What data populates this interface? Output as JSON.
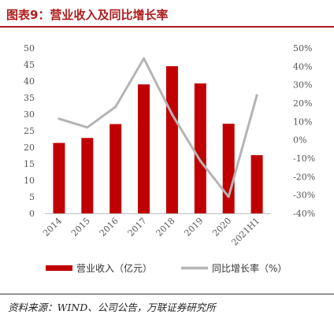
{
  "figure": {
    "title": "图表9：营业收入及同比增长率",
    "source": "资料来源：WIND、公司公告，万联证券研究所"
  },
  "chart_data": {
    "type": "bar",
    "title": "",
    "xlabel": "",
    "categories": [
      "2014",
      "2015",
      "2016",
      "2017",
      "2018",
      "2019",
      "2020",
      "2021H1"
    ],
    "left_axis": {
      "ylim": [
        0,
        50
      ],
      "ticks": [
        "0",
        "5",
        "10",
        "15",
        "20",
        "25",
        "30",
        "35",
        "40",
        "45",
        "50"
      ]
    },
    "right_axis": {
      "ylim": [
        -40,
        50
      ],
      "ticks": [
        "-40%",
        "-30%",
        "-20%",
        "-10%",
        "0%",
        "10%",
        "20%",
        "30%",
        "40%",
        "50%"
      ]
    },
    "series": [
      {
        "name": "营业收入（亿元）",
        "type": "bar",
        "axis": "left",
        "color": "#c00000",
        "values": [
          21.3,
          22.8,
          27.0,
          39.0,
          44.5,
          39.3,
          27.1,
          17.6
        ]
      },
      {
        "name": "同比增长率（%）",
        "type": "line",
        "axis": "right",
        "color": "#b4b4b4",
        "values": [
          11.5,
          6.8,
          18.0,
          44.3,
          13.9,
          -11.4,
          -31.0,
          24.3
        ]
      }
    ],
    "legend_position": "bottom",
    "grid": false
  }
}
